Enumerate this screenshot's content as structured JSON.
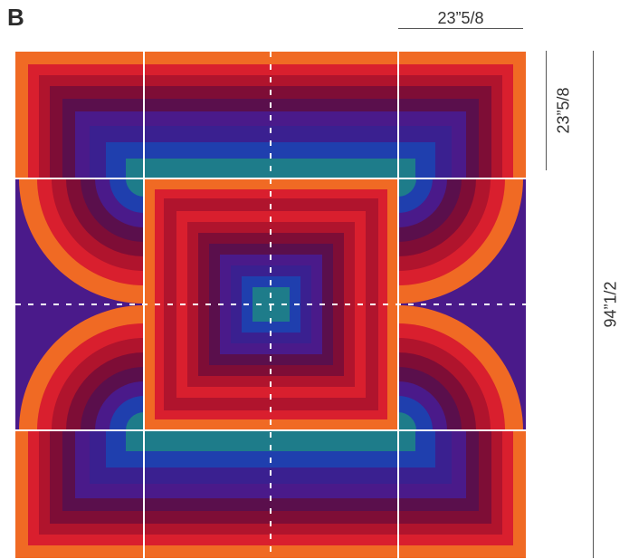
{
  "panel_label": "B",
  "dimensions": {
    "tile_width": "23”5/8",
    "tile_height": "23”5/8",
    "total_height": "94”1/2"
  },
  "rug": {
    "layout": "4x4 modular tiles",
    "colors": {
      "orange": "#f06a24",
      "red": "#d91f2e",
      "crimson": "#b0142d",
      "maroon": "#7e0d36",
      "plum": "#5a0f4c",
      "purple": "#4a1a8a",
      "indigo": "#3a2090",
      "blue": "#1f3fae",
      "teal": "#1e7c8a",
      "seam": "#ffffff"
    }
  }
}
